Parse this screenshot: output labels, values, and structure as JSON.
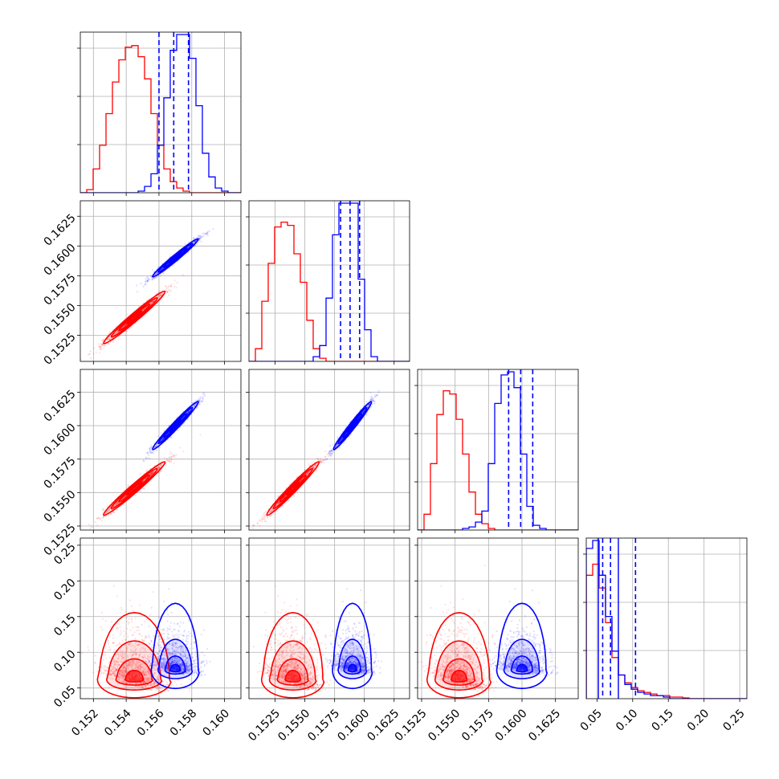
{
  "chart_data": {
    "type": "corner",
    "parameters": 4,
    "grid": true,
    "series": [
      {
        "color": "#ff0000"
      },
      {
        "color": "#0000ff"
      }
    ],
    "ranges": [
      [
        0.1512,
        0.161
      ],
      [
        0.1503,
        0.1638
      ],
      [
        0.1522,
        0.1642
      ],
      [
        0.035,
        0.26
      ]
    ],
    "ticks": [
      [
        0.152,
        0.154,
        0.156,
        0.158,
        0.16
      ],
      [
        0.1525,
        0.155,
        0.1575,
        0.16,
        0.1625
      ],
      [
        0.1525,
        0.155,
        0.1575,
        0.16,
        0.1625
      ],
      [
        0.05,
        0.1,
        0.15,
        0.2,
        0.25
      ]
    ],
    "tick_labels": {
      "p0": [
        "0.152",
        "0.154",
        "0.156",
        "0.158",
        "0.160"
      ],
      "p1": [
        "0.1525",
        "0.1550",
        "0.1575",
        "0.1600",
        "0.1625"
      ],
      "p2": [
        "0.1525",
        "0.1550",
        "0.1575",
        "0.1600",
        "0.1625"
      ],
      "p3": [
        "0.05",
        "0.10",
        "0.15",
        "0.20",
        "0.25"
      ]
    },
    "diag_hist_ticks": [
      0.3,
      0.6,
      0.9
    ],
    "quantiles_blue": [
      [
        0.156,
        0.1569,
        0.1578
      ],
      [
        0.158,
        0.1588,
        0.1596
      ],
      [
        0.159,
        0.1599,
        0.1608
      ],
      [
        0.058,
        0.069,
        0.104
      ]
    ],
    "blue_outer_lines_p3": [
      0.052,
      0.08
    ],
    "histograms": {
      "p0": {
        "edges_start": 0.1512,
        "bin_width": 0.000392,
        "red": [
          0,
          0.02,
          0.15,
          0.3,
          0.5,
          0.7,
          0.84,
          0.92,
          0.93,
          0.86,
          0.72,
          0.5,
          0.3,
          0.15,
          0.07,
          0.03,
          0.01,
          0,
          0,
          0,
          0,
          0,
          0,
          0,
          0
        ],
        "blue": [
          0,
          0,
          0,
          0,
          0,
          0,
          0,
          0,
          0,
          0.01,
          0.04,
          0.12,
          0.3,
          0.6,
          0.9,
          1.0,
          1.0,
          0.85,
          0.55,
          0.25,
          0.1,
          0.03,
          0.01,
          0,
          0
        ]
      },
      "p1": {
        "edges_start": 0.1503,
        "bin_width": 0.00054,
        "red": [
          0,
          0.08,
          0.38,
          0.62,
          0.85,
          0.88,
          0.86,
          0.68,
          0.5,
          0.26,
          0.08,
          0.02,
          0,
          0,
          0,
          0,
          0,
          0,
          0,
          0,
          0,
          0,
          0,
          0,
          0
        ],
        "blue": [
          0,
          0,
          0,
          0,
          0,
          0,
          0,
          0,
          0,
          0,
          0.03,
          0.1,
          0.4,
          0.8,
          1.0,
          1.0,
          1.0,
          0.52,
          0.2,
          0.03,
          0,
          0,
          0,
          0,
          0
        ]
      },
      "p2": {
        "edges_start": 0.1522,
        "bin_width": 0.00048,
        "red": [
          0,
          0.1,
          0.42,
          0.73,
          0.88,
          0.86,
          0.7,
          0.48,
          0.24,
          0.1,
          0.04,
          0.01,
          0,
          0,
          0,
          0,
          0,
          0,
          0,
          0,
          0,
          0,
          0,
          0,
          0
        ],
        "blue": [
          0,
          0,
          0,
          0,
          0,
          0,
          0,
          0.01,
          0.02,
          0.05,
          0.12,
          0.42,
          0.8,
          0.98,
          1.0,
          0.9,
          0.48,
          0.15,
          0.03,
          0.01,
          0,
          0,
          0,
          0,
          0
        ]
      },
      "p3": {
        "edges_start": 0.035,
        "bin_width": 0.009,
        "red": [
          0.78,
          0.85,
          0.7,
          0.48,
          0.26,
          0.15,
          0.1,
          0.07,
          0.05,
          0.04,
          0.03,
          0.02,
          0.02,
          0.01,
          0.01,
          0.005,
          0,
          0,
          0,
          0,
          0,
          0,
          0,
          0,
          0
        ],
        "blue": [
          0.95,
          1.0,
          0.78,
          0.52,
          0.3,
          0.15,
          0.09,
          0.06,
          0.04,
          0.03,
          0.02,
          0.02,
          0.01,
          0,
          0,
          0,
          0,
          0,
          0,
          0,
          0,
          0,
          0,
          0,
          0
        ]
      }
    },
    "joint_2d": {
      "red": {
        "mean": [
          0.1545,
          0.154,
          0.1553,
          0.068
        ],
        "sd": [
          0.00094,
          0.0011,
          0.001,
          0.03
        ],
        "corr_1_0": 0.98,
        "corr_2_0": 0.98,
        "corr_2_1": 0.98,
        "corr_3_x": -0.2
      },
      "blue": {
        "mean": [
          0.157,
          0.159,
          0.16,
          0.082
        ],
        "sd": [
          0.0007,
          0.0008,
          0.0009,
          0.022
        ],
        "corr_1_0": 0.98,
        "corr_2_0": 0.98,
        "corr_2_1": 0.98,
        "corr_3_x": -0.1
      }
    }
  }
}
